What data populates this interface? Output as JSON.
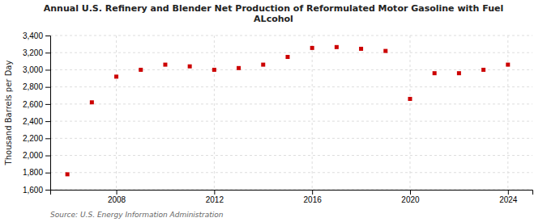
{
  "chart_data": {
    "type": "scatter",
    "title": "Annual U.S. Refinery and Blender Net Production of Reformulated Motor Gasoline with Fuel\nALcohol",
    "ylabel": "Thousand Barrels per Day",
    "source": "Source: U.S. Energy Information Administration",
    "x": [
      2006,
      2007,
      2008,
      2009,
      2010,
      2011,
      2012,
      2013,
      2014,
      2015,
      2016,
      2017,
      2018,
      2019,
      2020,
      2021,
      2022,
      2023,
      2024
    ],
    "values": [
      1780,
      2620,
      2920,
      3000,
      3060,
      3040,
      3000,
      3020,
      3060,
      3150,
      3255,
      3265,
      3245,
      3220,
      2660,
      2960,
      2960,
      3000,
      3060
    ],
    "color": "#cc0000",
    "marker": "square",
    "xlim": [
      2005.3,
      2025.0
    ],
    "xticks": [
      2008,
      2012,
      2016,
      2020,
      2024
    ],
    "ylim": [
      1600,
      3400
    ],
    "yticks": [
      {
        "value": 1600,
        "label": "1,600"
      },
      {
        "value": 1800,
        "label": "1,800"
      },
      {
        "value": 2000,
        "label": "2,000"
      },
      {
        "value": 2200,
        "label": "2,200"
      },
      {
        "value": 2400,
        "label": "2,400"
      },
      {
        "value": 2600,
        "label": "2,600"
      },
      {
        "value": 2800,
        "label": "2,800"
      },
      {
        "value": 3000,
        "label": "3,000"
      },
      {
        "value": 3200,
        "label": "3,200"
      },
      {
        "value": 3400,
        "label": "3,400"
      }
    ],
    "grid": true
  }
}
